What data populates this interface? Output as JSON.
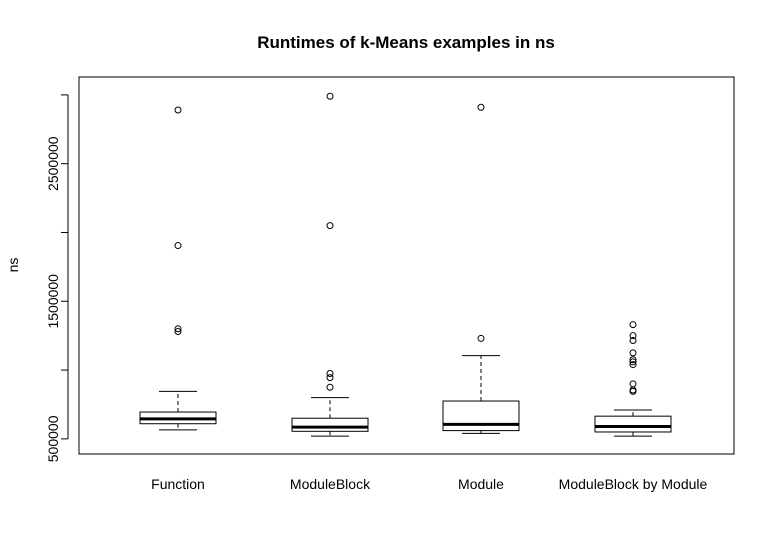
{
  "chart_data": {
    "type": "boxplot",
    "title": "Runtimes of k-Means examples in ns",
    "xlabel": "",
    "ylabel": "ns",
    "categories": [
      "Function",
      "ModuleBlock",
      "Module",
      "ModuleBlock by Module"
    ],
    "y_ticks": [
      500000,
      1500000,
      2500000
    ],
    "y_tick_labels": [
      "500000",
      "1500000",
      "2500000"
    ],
    "ylim": [
      390000,
      3130000
    ],
    "grid": false,
    "boxes": [
      {
        "name": "Function",
        "whisker_low": 565000,
        "q1": 610000,
        "median": 645000,
        "q3": 695000,
        "whisker_high": 845000,
        "outliers": [
          1280000,
          1300000,
          1905000,
          2890000
        ]
      },
      {
        "name": "ModuleBlock",
        "whisker_low": 520000,
        "q1": 555000,
        "median": 585000,
        "q3": 650000,
        "whisker_high": 800000,
        "outliers": [
          875000,
          945000,
          975000,
          2050000,
          2990000
        ]
      },
      {
        "name": "Module",
        "whisker_low": 540000,
        "q1": 560000,
        "median": 605000,
        "q3": 775000,
        "whisker_high": 1105000,
        "outliers": [
          1230000,
          2910000
        ]
      },
      {
        "name": "ModuleBlock by Module",
        "whisker_low": 520000,
        "q1": 550000,
        "median": 590000,
        "q3": 665000,
        "whisker_high": 710000,
        "outliers": [
          845000,
          855000,
          900000,
          1040000,
          1060000,
          1075000,
          1125000,
          1215000,
          1250000,
          1330000
        ]
      }
    ]
  }
}
